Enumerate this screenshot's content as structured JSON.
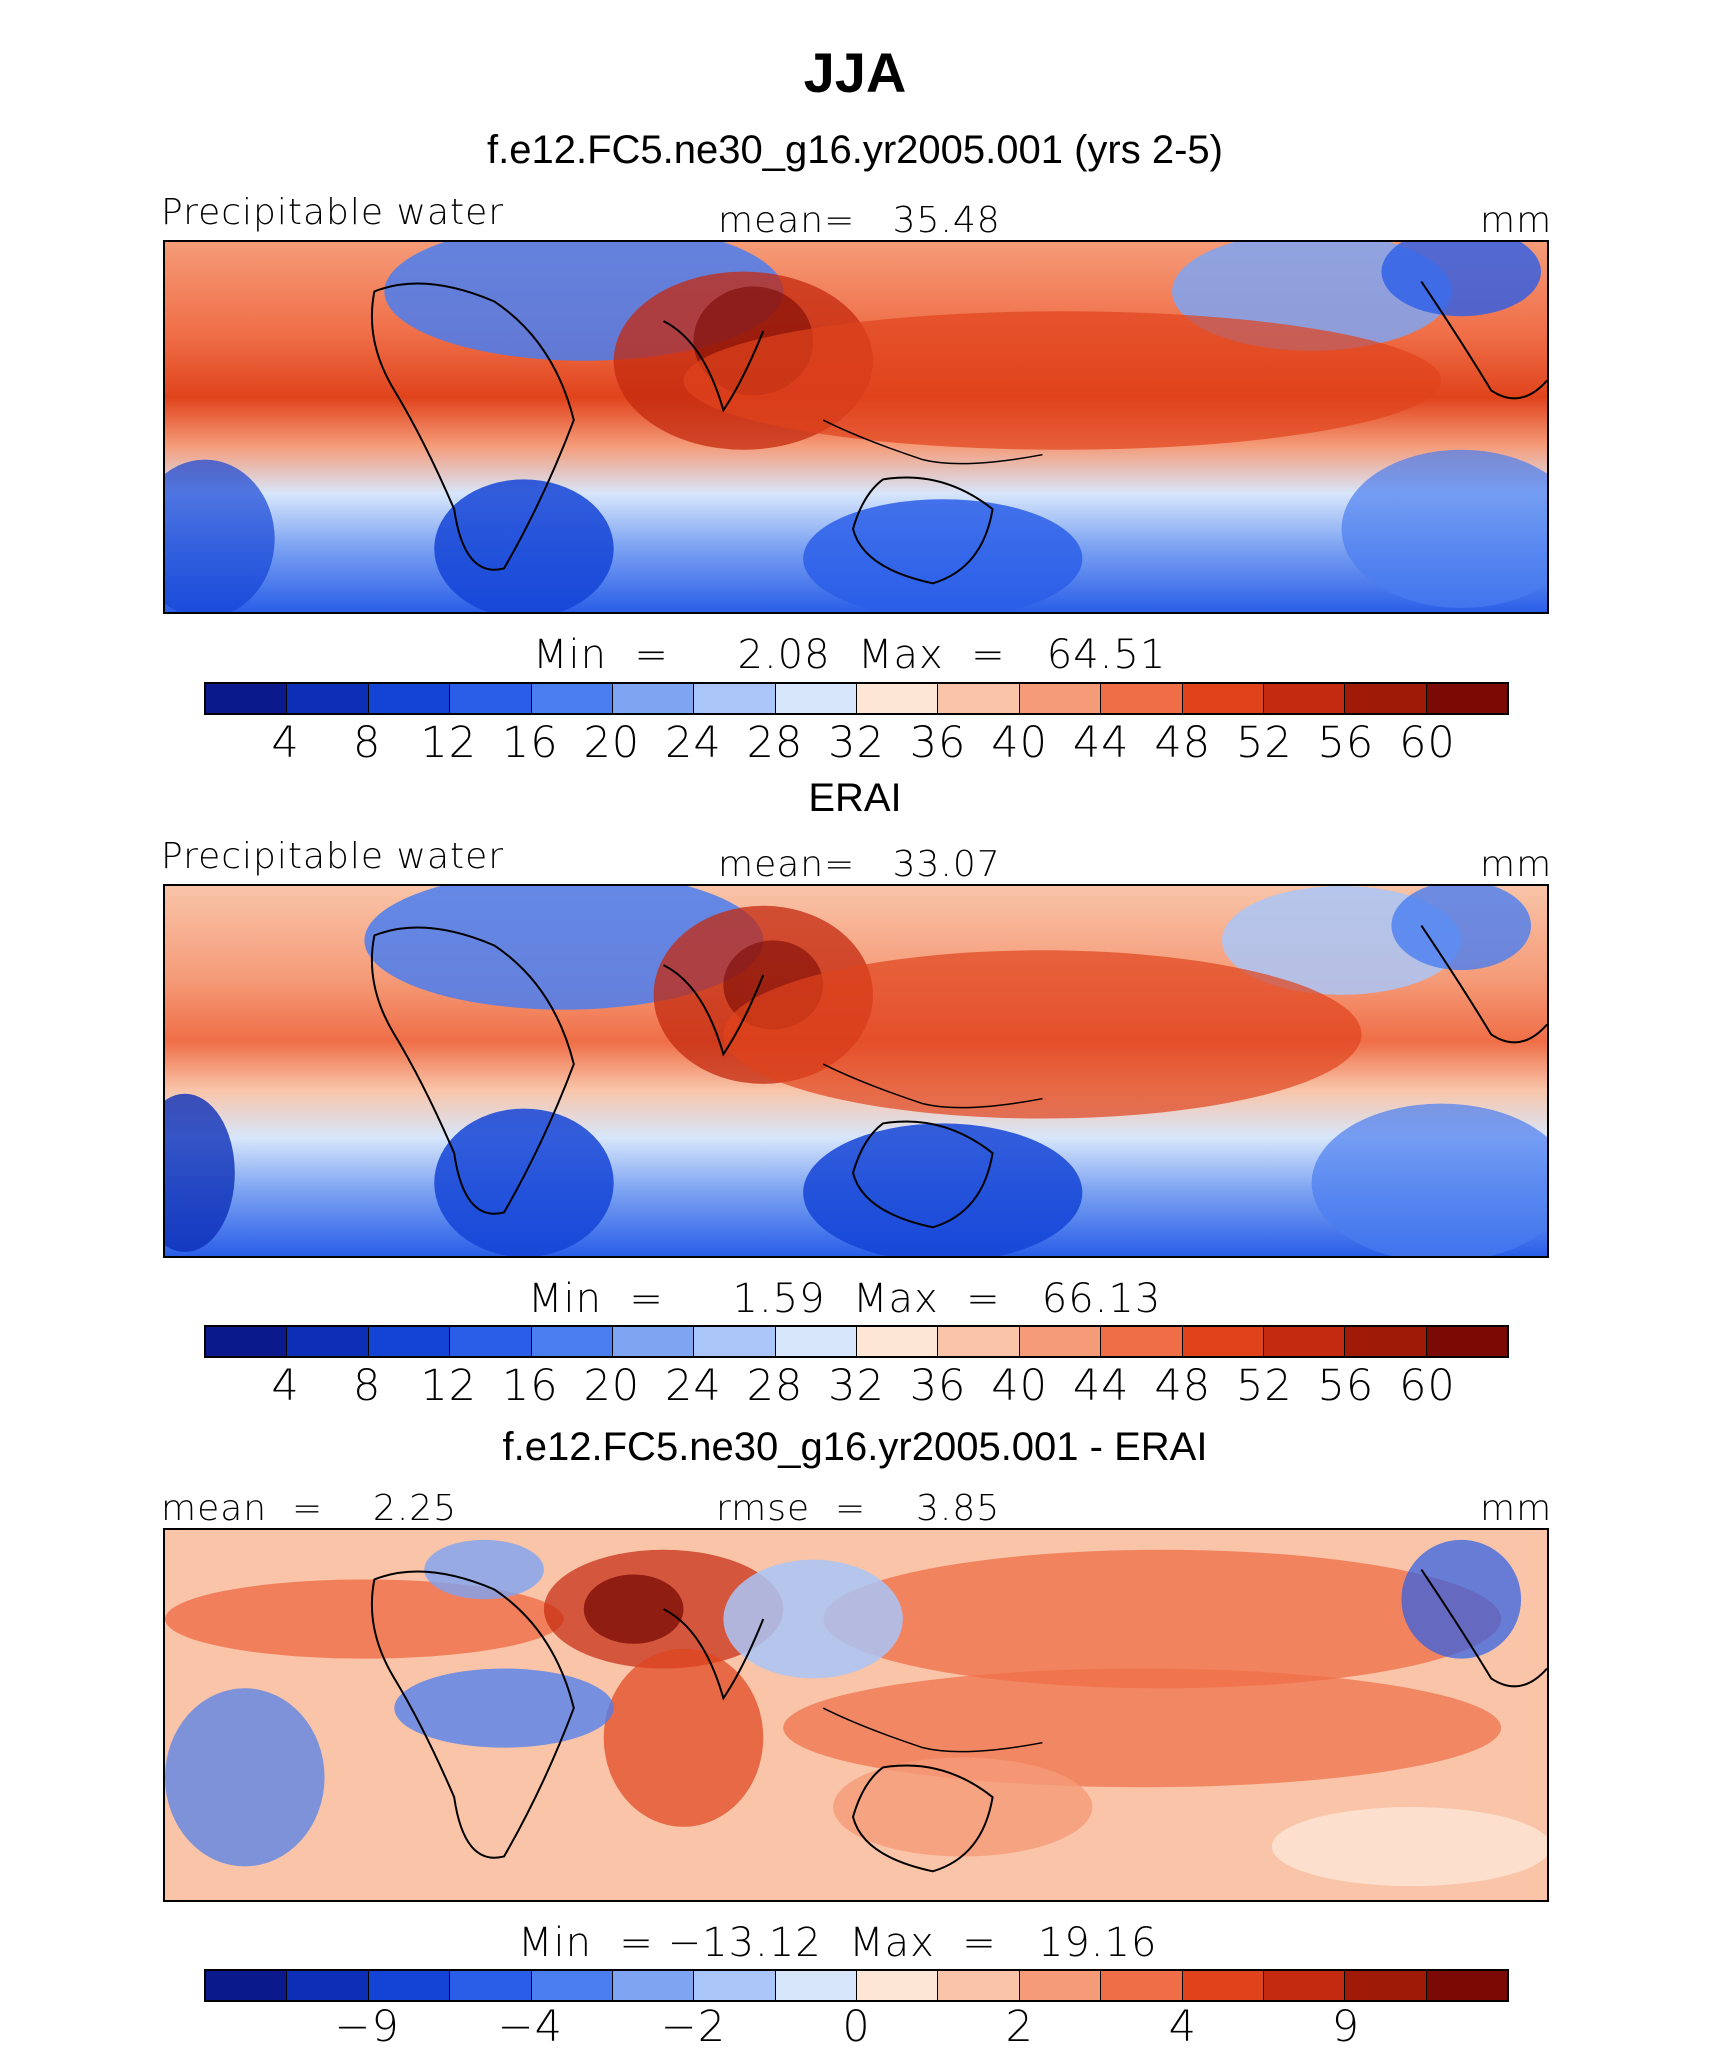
{
  "title": "JJA",
  "panels": [
    {
      "heading": "f.e12.FC5.ne30_g16.yr2005.001 (yrs 2-5)",
      "left_label": "Precipitable water",
      "center_label": "mean=   35.48",
      "right_label": "mm",
      "minmax": "Min  =     2.08  Max  =   64.51",
      "ticks": [
        "4",
        "8",
        "12",
        "16",
        "20",
        "24",
        "28",
        "32",
        "36",
        "40",
        "44",
        "48",
        "52",
        "56",
        "60"
      ]
    },
    {
      "heading": "ERAI",
      "left_label": "Precipitable water",
      "center_label": "mean=   33.07",
      "right_label": "mm",
      "minmax": "Min  =     1.59  Max  =   66.13",
      "ticks": [
        "4",
        "8",
        "12",
        "16",
        "20",
        "24",
        "28",
        "32",
        "36",
        "40",
        "44",
        "48",
        "52",
        "56",
        "60"
      ]
    },
    {
      "heading": "f.e12.FC5.ne30_g16.yr2005.001 - ERAI",
      "left_label": "mean  =    2.25",
      "center_label": "rmse  =    3.85",
      "right_label": "mm",
      "minmax": "Min  = −13.12  Max  =   19.16",
      "ticks": [
        "−9",
        "−4",
        "−2",
        "0",
        "2",
        "4",
        "9"
      ]
    }
  ],
  "colorbar": {
    "colors": [
      "#0a1a8c",
      "#0d2fb8",
      "#1444d6",
      "#2a5ee8",
      "#4a7ef0",
      "#7ea4f2",
      "#aac5f7",
      "#d7e6fb",
      "#fde6d5",
      "#f9c4a8",
      "#f59b78",
      "#ef6e47",
      "#e0431c",
      "#c42a0f",
      "#a01a08",
      "#7a0a03"
    ]
  }
}
